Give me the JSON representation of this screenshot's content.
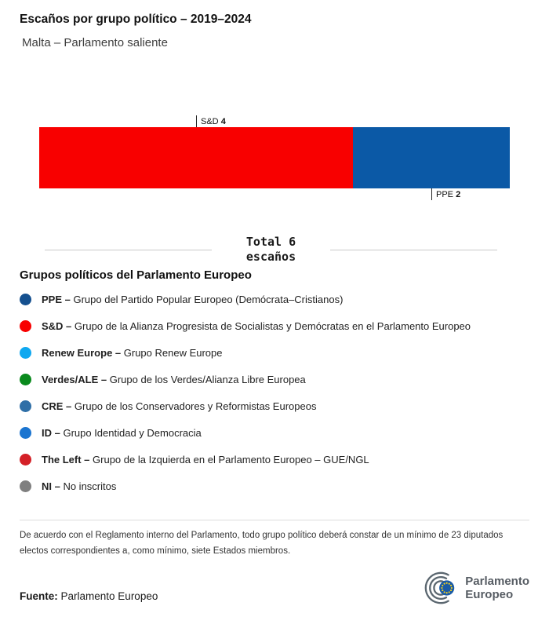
{
  "header": {
    "title": "Escaños por grupo político – 2019–2024",
    "subtitle": "Malta – Parlamento saliente"
  },
  "chart_data": {
    "type": "bar",
    "variant": "horizontal_stacked_single_bar",
    "title": "Escaños por grupo político – 2019–2024",
    "subtitle": "Malta – Parlamento saliente",
    "total_seats": 6,
    "total_label_line1": "Total 6",
    "total_label_line2": "escaños",
    "categories": [
      "S&D",
      "PPE"
    ],
    "values": [
      4,
      2
    ],
    "segments": [
      {
        "group": "S&D",
        "seats": 4,
        "color": "#f80000",
        "label_position": "above"
      },
      {
        "group": "PPE",
        "seats": 2,
        "color": "#0b59a6",
        "label_position": "below"
      }
    ]
  },
  "legend": {
    "heading": "Grupos políticos del Parlamento Europeo",
    "items": [
      {
        "abbr": "PPE –",
        "name": "Grupo del Partido Popular Europeo (Demócrata–Cristianos)",
        "color": "#15508f"
      },
      {
        "abbr": "S&D –",
        "name": "Grupo de la Alianza Progresista de Socialistas y Demócratas en el Parlamento Europeo",
        "color": "#f80000"
      },
      {
        "abbr": "Renew Europe –",
        "name": "Grupo Renew Europe",
        "color": "#0fa8f0"
      },
      {
        "abbr": "Verdes/ALE –",
        "name": "Grupo de los Verdes/Alianza Libre Europea",
        "color": "#0a8a1d"
      },
      {
        "abbr": "CRE –",
        "name": "Grupo de los Conservadores y Reformistas Europeos",
        "color": "#2f6fa7"
      },
      {
        "abbr": "ID –",
        "name": "Grupo Identidad y Democracia",
        "color": "#1b75d0"
      },
      {
        "abbr": "The Left –",
        "name": "Grupo de la Izquierda en el Parlamento Europeo – GUE/NGL",
        "color": "#d42027"
      },
      {
        "abbr": "NI –",
        "name": "No inscritos",
        "color": "#7f7f7f"
      }
    ]
  },
  "footnote": "De acuerdo con el Reglamento interno del Parlamento, todo grupo político deberá constar de un mínimo de 23 diputados electos correspondientes a, como mínimo, siete Estados miembros.",
  "footer": {
    "source_label": "Fuente:",
    "source": "Parlamento Europeo"
  },
  "logo": {
    "line1": "Parlamento",
    "line2": "Europeo"
  }
}
